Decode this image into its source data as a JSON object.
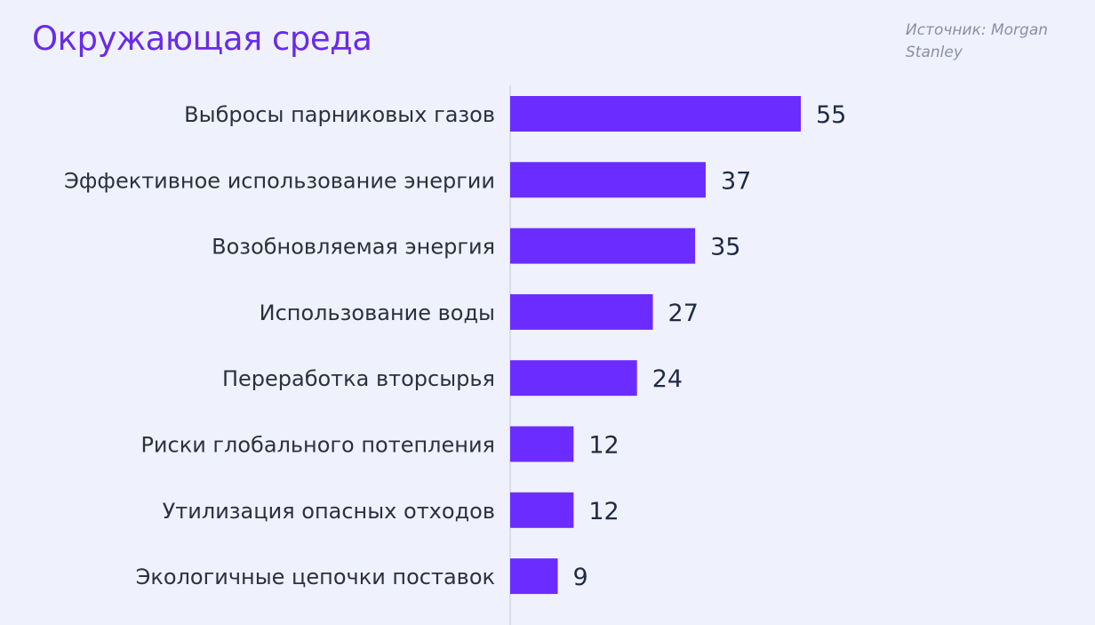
{
  "header": {
    "title": "Окружающая среда",
    "source": "Источник: Morgan Stanley"
  },
  "colors": {
    "bar": "#6b2cff",
    "title": "#6a2be8",
    "background": "#eff2fc",
    "axis": "#d4d8e4"
  },
  "chart_data": {
    "type": "bar",
    "orientation": "horizontal",
    "title": "Окружающая среда",
    "categories": [
      "Выбросы парниковых газов",
      "Эффективное использование энергии",
      "Возобновляемая энергия",
      "Использование воды",
      "Переработка вторсырья",
      "Риски глобального потепления",
      "Утилизация опасных отходов",
      "Экологичные цепочки поставок"
    ],
    "values": [
      55,
      37,
      35,
      27,
      24,
      12,
      12,
      9
    ],
    "xlim": [
      0,
      55
    ],
    "grid": false,
    "legend": "none"
  }
}
